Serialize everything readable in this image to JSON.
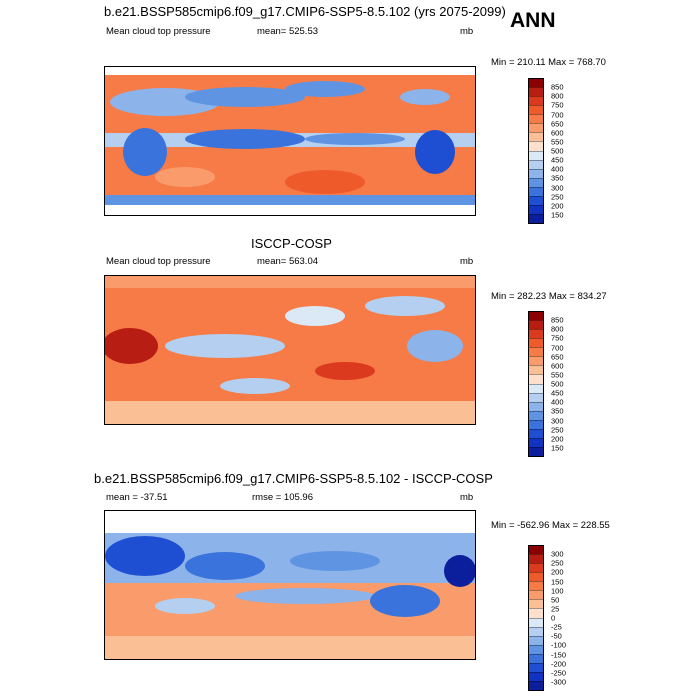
{
  "header": {
    "top_title": "b.e21.BSSP585cmip6.f09_g17.CMIP6-SSP5-8.5.102 (yrs 2075-2099)",
    "season": "ANN"
  },
  "panels": [
    {
      "variable": "Mean cloud top pressure",
      "stat": "mean= 525.53",
      "units": "mb",
      "minmax": "Min = 210.11 Max = 768.70",
      "levels": [
        "850",
        "800",
        "750",
        "700",
        "650",
        "600",
        "550",
        "500",
        "450",
        "400",
        "350",
        "300",
        "250",
        "200",
        "150"
      ],
      "colors": [
        "#8b0000",
        "#b81d13",
        "#dc3a1e",
        "#ef5a2b",
        "#f67b47",
        "#f99b6a",
        "#fbbf96",
        "#fde0cb",
        "#dbe8f6",
        "#b4cff0",
        "#8cb3ea",
        "#5f94e3",
        "#3a73db",
        "#1e4fd2",
        "#1133c0",
        "#0b1f9c"
      ]
    },
    {
      "title": "ISCCP-COSP",
      "variable": "Mean cloud top pressure",
      "stat": "mean= 563.04",
      "units": "mb",
      "minmax": "Min = 282.23 Max = 834.27",
      "levels": [
        "850",
        "800",
        "750",
        "700",
        "650",
        "600",
        "550",
        "500",
        "450",
        "400",
        "350",
        "300",
        "250",
        "200",
        "150"
      ],
      "colors": [
        "#8b0000",
        "#b81d13",
        "#dc3a1e",
        "#ef5a2b",
        "#f67b47",
        "#f99b6a",
        "#fbbf96",
        "#fde0cb",
        "#dbe8f6",
        "#b4cff0",
        "#8cb3ea",
        "#5f94e3",
        "#3a73db",
        "#1e4fd2",
        "#1133c0",
        "#0b1f9c"
      ]
    },
    {
      "title": "b.e21.BSSP585cmip6.f09_g17.CMIP6-SSP5-8.5.102 - ISCCP-COSP",
      "stat": "mean = -37.51",
      "rmse": "rmse = 105.96",
      "units": "mb",
      "minmax": "Min = -562.96 Max = 228.55",
      "levels": [
        "300",
        "250",
        "200",
        "150",
        "100",
        "50",
        "25",
        "0",
        "-25",
        "-50",
        "-100",
        "-150",
        "-200",
        "-250",
        "-300"
      ],
      "colors": [
        "#8b0000",
        "#b81d13",
        "#dc3a1e",
        "#ef5a2b",
        "#f67b47",
        "#f99b6a",
        "#fbbf96",
        "#fde0cb",
        "#dbe8f6",
        "#b4cff0",
        "#8cb3ea",
        "#5f94e3",
        "#3a73db",
        "#1e4fd2",
        "#1133c0",
        "#0b1f9c"
      ]
    }
  ]
}
